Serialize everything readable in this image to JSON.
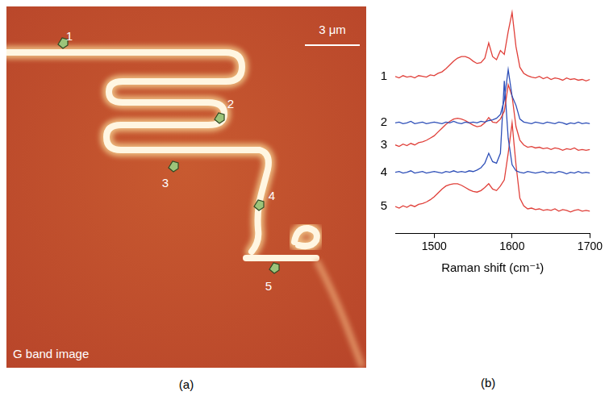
{
  "panel_a": {
    "caption": "(a)",
    "image_label": "G band image",
    "scale_bar": "3 μm",
    "spot_labels": [
      "1",
      "2",
      "3",
      "4",
      "5"
    ]
  },
  "chart_data": {
    "caption": "(b)",
    "type": "line",
    "x_label": "Raman shift (cm⁻¹)",
    "x": [
      1450,
      1455,
      1460,
      1465,
      1470,
      1475,
      1480,
      1485,
      1490,
      1495,
      1500,
      1505,
      1510,
      1515,
      1520,
      1525,
      1530,
      1535,
      1540,
      1545,
      1550,
      1555,
      1560,
      1565,
      1570,
      1575,
      1580,
      1585,
      1590,
      1595,
      1600,
      1605,
      1610,
      1615,
      1620,
      1625,
      1630,
      1635,
      1640,
      1645,
      1650,
      1655,
      1660,
      1665,
      1670,
      1675,
      1680,
      1685,
      1690,
      1695,
      1700
    ],
    "xlim": [
      1450,
      1700
    ],
    "xticks": [
      1500,
      1600,
      1700
    ],
    "ylim": [
      0,
      30
    ],
    "tick_labels": "x",
    "grid": false,
    "series": [
      {
        "name": "1",
        "color": "#e0403a",
        "values": [
          20.6,
          20.4,
          20.7,
          20.5,
          20.6,
          20.4,
          20.7,
          20.6,
          20.5,
          20.8,
          20.7,
          21.0,
          21.2,
          21.6,
          22.1,
          22.6,
          23.0,
          23.2,
          23.2,
          23.0,
          22.6,
          22.3,
          22.4,
          23.0,
          25.0,
          23.2,
          22.8,
          24.0,
          23.5,
          26.5,
          29.0,
          24.5,
          21.8,
          21.0,
          20.7,
          20.5,
          20.4,
          20.6,
          20.3,
          20.5,
          20.2,
          20.4,
          20.3,
          20.1,
          20.4,
          20.2,
          20.3,
          20.1,
          20.2,
          20.0,
          20.2
        ]
      },
      {
        "name": "2",
        "color": "#2e4fb8",
        "values": [
          14.5,
          14.6,
          14.4,
          14.5,
          14.7,
          14.4,
          14.5,
          14.6,
          14.4,
          14.5,
          14.6,
          14.5,
          14.4,
          14.6,
          14.5,
          14.7,
          14.5,
          14.4,
          14.6,
          14.5,
          14.6,
          14.5,
          14.7,
          14.6,
          14.8,
          14.9,
          15.1,
          15.6,
          17.5,
          21.5,
          18.0,
          16.8,
          15.0,
          14.6,
          14.5,
          14.4,
          14.6,
          14.5,
          14.4,
          14.6,
          14.5,
          14.4,
          14.6,
          14.5,
          14.3,
          14.5,
          14.4,
          14.6,
          14.4,
          14.5,
          14.4
        ]
      },
      {
        "name": "3",
        "color": "#e0403a",
        "values": [
          11.6,
          11.4,
          11.7,
          11.5,
          11.8,
          11.6,
          11.9,
          12.0,
          12.2,
          12.5,
          12.8,
          13.3,
          13.8,
          14.3,
          14.7,
          15.0,
          15.1,
          15.0,
          14.8,
          14.5,
          14.2,
          14.0,
          14.1,
          14.5,
          15.2,
          14.6,
          14.5,
          15.0,
          16.0,
          19.5,
          18.0,
          14.0,
          12.2,
          11.6,
          11.3,
          11.4,
          11.2,
          11.3,
          11.1,
          11.2,
          11.0,
          11.2,
          11.1,
          10.9,
          11.1,
          11.0,
          11.2,
          10.9,
          11.0,
          10.9,
          11.0
        ]
      },
      {
        "name": "4",
        "color": "#2e4fb8",
        "values": [
          8.0,
          8.1,
          7.9,
          8.0,
          8.2,
          7.9,
          8.0,
          8.1,
          7.9,
          8.0,
          8.1,
          8.0,
          7.9,
          8.1,
          8.0,
          8.2,
          8.0,
          8.1,
          8.0,
          8.2,
          8.1,
          8.3,
          8.6,
          9.2,
          10.5,
          9.4,
          9.2,
          10.5,
          20.0,
          12.5,
          9.0,
          8.2,
          8.0,
          7.9,
          8.1,
          8.0,
          7.9,
          8.0,
          8.1,
          7.9,
          8.0,
          7.9,
          8.1,
          8.0,
          7.8,
          8.0,
          7.9,
          8.1,
          7.9,
          8.0,
          7.9
        ]
      },
      {
        "name": "5",
        "color": "#e0403a",
        "values": [
          3.5,
          3.3,
          3.6,
          3.4,
          3.7,
          3.5,
          3.8,
          3.9,
          4.1,
          4.4,
          4.8,
          5.3,
          5.8,
          6.2,
          6.4,
          6.5,
          6.5,
          6.3,
          6.0,
          5.7,
          5.5,
          5.4,
          5.6,
          6.0,
          6.5,
          5.8,
          5.6,
          6.2,
          7.0,
          10.5,
          14.5,
          9.0,
          4.6,
          3.6,
          3.2,
          3.3,
          3.1,
          3.2,
          3.0,
          3.1,
          3.0,
          3.2,
          2.9,
          3.1,
          3.0,
          2.8,
          3.0,
          3.1,
          2.9,
          3.0,
          2.9
        ]
      }
    ]
  }
}
